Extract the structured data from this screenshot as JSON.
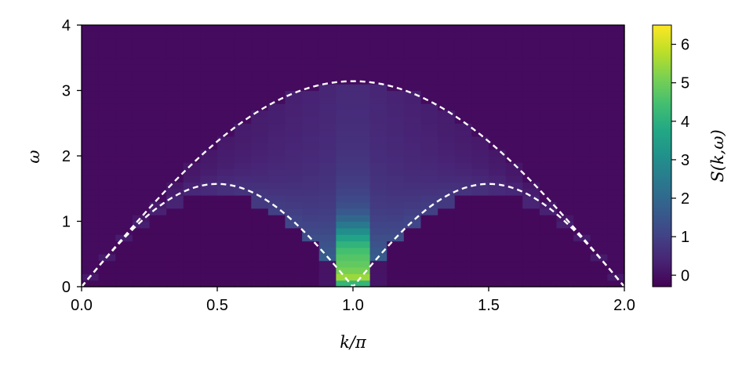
{
  "chart_data": {
    "type": "heatmap",
    "title": "",
    "xlabel": "k/π",
    "ylabel": "ω",
    "colorbar_label": "S(k,ω)",
    "xlim": [
      0.0,
      2.0
    ],
    "ylim": [
      0,
      4
    ],
    "x_ticks": [
      "0.0",
      "0.5",
      "1.0",
      "1.5",
      "2.0"
    ],
    "y_ticks": [
      "0",
      "1",
      "2",
      "3",
      "4"
    ],
    "colorbar_range": [
      -0.3,
      6.5
    ],
    "colorbar_ticks": [
      "0",
      "1",
      "2",
      "3",
      "4",
      "5",
      "6"
    ],
    "colormap": "viridis",
    "grid": {
      "k_cells": 32,
      "omega_cells": 40,
      "k_step": 0.0625,
      "omega_step": 0.1
    },
    "features": {
      "peak_intensity": 6.5,
      "peak_location": {
        "k": 1.0,
        "omega": 0.1
      },
      "background_intensity": -0.1,
      "bright_column_k_range": [
        0.92,
        1.08
      ],
      "bright_column_omega_max": 0.9
    },
    "overlay_curves": [
      {
        "style": "white-dashed",
        "formula": "pi*sin(pi*k/2)",
        "peak": {
          "k": 1.0,
          "omega": 3.14
        }
      },
      {
        "style": "white-dashed",
        "formula": "(pi/2)*|sin(pi*k)|",
        "peak": {
          "k": 0.5,
          "omega": 1.57
        }
      }
    ]
  },
  "colors": {
    "background": "#ffffff",
    "dashed_lines": "#ffffff",
    "axis": "#000000"
  }
}
